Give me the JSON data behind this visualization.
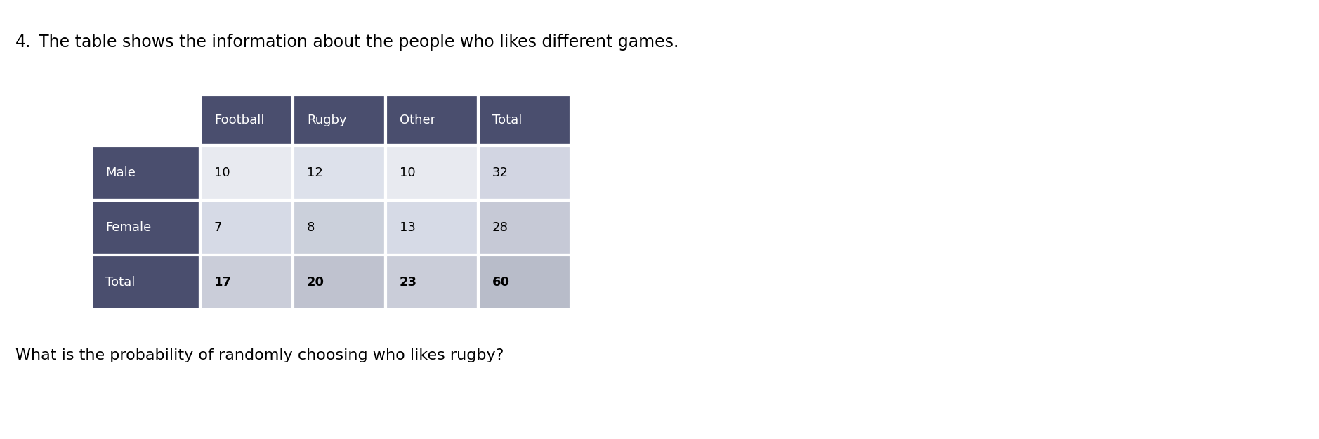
{
  "question_number": "4.",
  "question_text": "The table shows the information about the people who likes different games.",
  "sub_question": "What is the probability of randomly choosing who likes rugby?",
  "header_labels": [
    "Football",
    "Rugby",
    "Other",
    "Total"
  ],
  "row_labels": [
    "Male",
    "Female",
    "Total"
  ],
  "table_data": [
    [
      10,
      12,
      10,
      32
    ],
    [
      7,
      8,
      13,
      28
    ],
    [
      17,
      20,
      23,
      60
    ]
  ],
  "header_bg_color": "#4a4e6e",
  "header_text_color": "#ffffff",
  "row_label_bg_color": "#4a4e6e",
  "row_label_text_color": "#ffffff",
  "cell_bg_male": [
    "#e8eaf0",
    "#dde0eb",
    "#e8eaf0",
    "#d0d4e0"
  ],
  "cell_bg_female": [
    "#d8dbe6",
    "#cdd0dc",
    "#d8dbe6",
    "#c8ccd8"
  ],
  "cell_bg_total": [
    "#d0d3de",
    "#c5c9d5",
    "#d0d3de",
    "#bec2ce"
  ],
  "border_color": "#ffffff",
  "question_fontsize": 17,
  "table_header_fontsize": 13,
  "table_data_fontsize": 13,
  "sub_question_fontsize": 16,
  "fig_width": 18.78,
  "fig_height": 6.25,
  "dpi": 100
}
